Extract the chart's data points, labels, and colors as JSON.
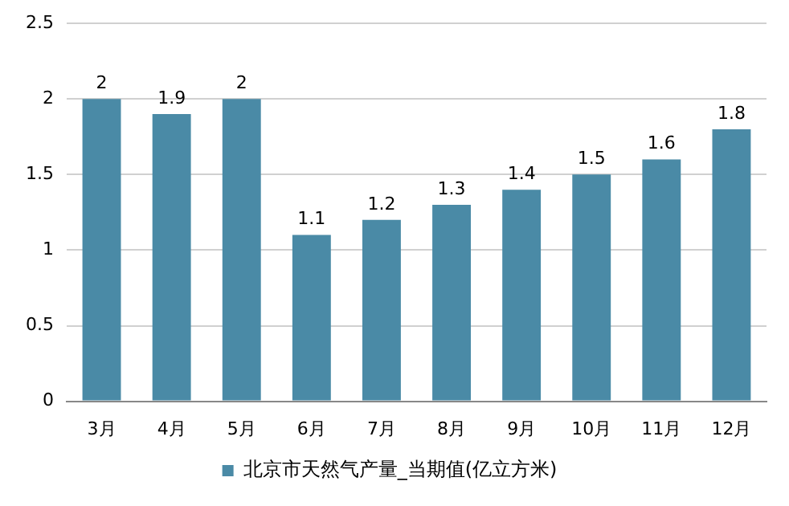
{
  "chart_data": {
    "type": "bar",
    "categories": [
      "3月",
      "4月",
      "5月",
      "6月",
      "7月",
      "8月",
      "9月",
      "10月",
      "11月",
      "12月"
    ],
    "series": [
      {
        "name": "北京市天然气产量_当期值(亿立方米)",
        "color": "#4a8aa6",
        "values": [
          2,
          1.9,
          2,
          1.1,
          1.2,
          1.3,
          1.4,
          1.5,
          1.6,
          1.8
        ]
      }
    ],
    "ylim": [
      0,
      2.5
    ],
    "yticks": [
      0,
      0.5,
      1,
      1.5,
      2,
      2.5
    ],
    "grid": "y",
    "legend": "bottom",
    "data_labels": true
  }
}
